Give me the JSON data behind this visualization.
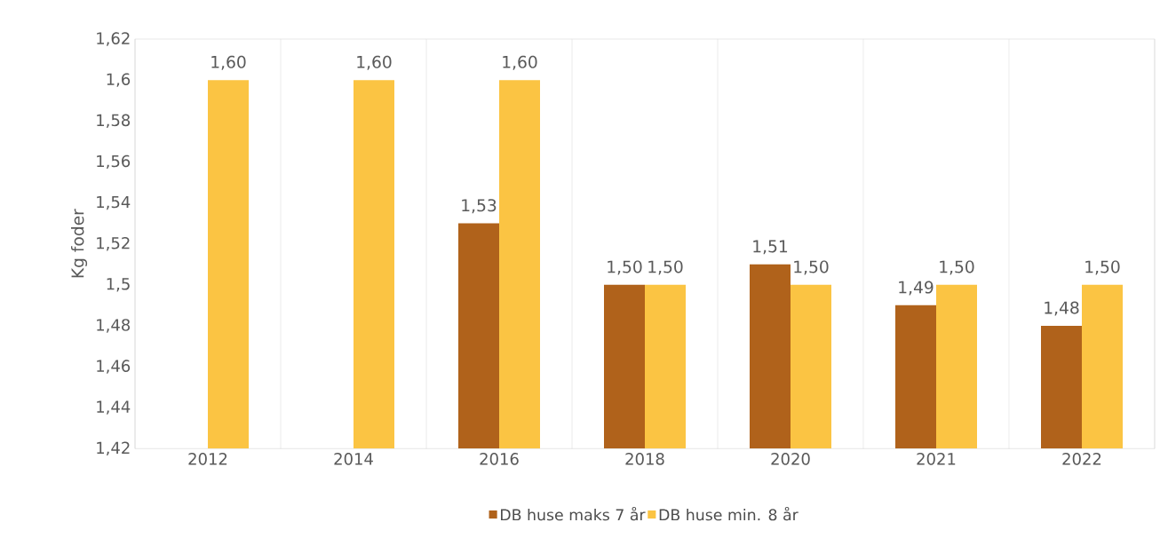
{
  "chart_data": {
    "type": "bar",
    "ylabel": "Kg foder",
    "categories": [
      "2012",
      "2014",
      "2016",
      "2018",
      "2020",
      "2021",
      "2022"
    ],
    "series": [
      {
        "name": "DB huse maks 7 år",
        "color": "#b0621b",
        "values": [
          null,
          null,
          1.53,
          1.5,
          1.51,
          1.49,
          1.48
        ],
        "value_labels": [
          null,
          null,
          "1,53",
          "1,50",
          "1,51",
          "1,49",
          "1,48"
        ]
      },
      {
        "name": "DB huse min. 8 år",
        "color": "#fbc443",
        "values": [
          1.6,
          1.6,
          1.6,
          1.5,
          1.5,
          1.5,
          1.5
        ],
        "value_labels": [
          "1,60",
          "1,60",
          "1,60",
          "1,50",
          "1,50",
          "1,50",
          "1,50"
        ]
      }
    ],
    "ylim": [
      1.42,
      1.62
    ],
    "yticks": [
      {
        "value": 1.42,
        "label": "1,42"
      },
      {
        "value": 1.44,
        "label": "1,44"
      },
      {
        "value": 1.46,
        "label": "1,46"
      },
      {
        "value": 1.48,
        "label": "1,48"
      },
      {
        "value": 1.5,
        "label": "1,5"
      },
      {
        "value": 1.52,
        "label": "1,52"
      },
      {
        "value": 1.54,
        "label": "1,54"
      },
      {
        "value": 1.56,
        "label": "1,56"
      },
      {
        "value": 1.58,
        "label": "1,58"
      },
      {
        "value": 1.6,
        "label": "1,6"
      },
      {
        "value": 1.62,
        "label": "1,62"
      }
    ],
    "grid": "x",
    "legend": "bottom"
  }
}
